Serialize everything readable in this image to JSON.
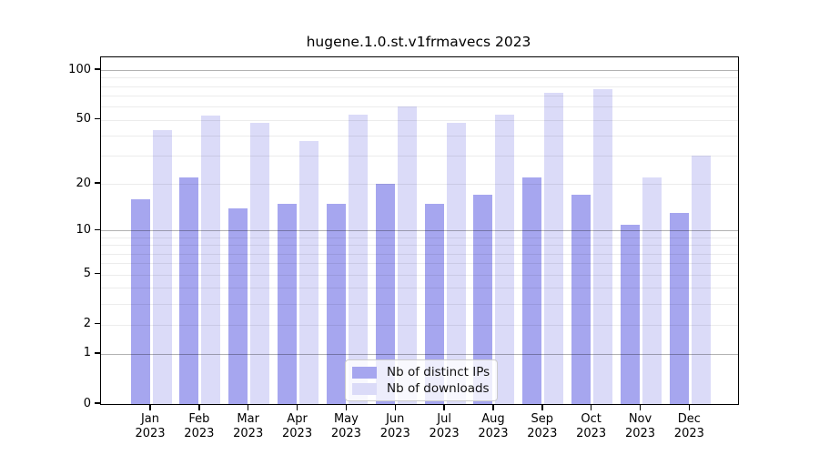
{
  "chart_data": {
    "type": "bar",
    "title": "hugene.1.0.st.v1frmavecs 2023",
    "year": "2023",
    "categories": [
      "Jan",
      "Feb",
      "Mar",
      "Apr",
      "May",
      "Jun",
      "Jul",
      "Aug",
      "Sep",
      "Oct",
      "Nov",
      "Dec"
    ],
    "series": [
      {
        "name": "Nb of distinct IPs",
        "color": "#a6a6ef",
        "values": [
          16,
          22,
          14,
          15,
          15,
          20,
          15,
          17,
          22,
          17,
          11,
          13
        ]
      },
      {
        "name": "Nb of downloads",
        "color": "#dbdbf8",
        "values": [
          43,
          53,
          48,
          37,
          54,
          60,
          48,
          54,
          73,
          77,
          22,
          30
        ]
      }
    ],
    "ylabel": "",
    "xlabel": "",
    "yscale": "log10(1+value)",
    "ylim": [
      0,
      120
    ],
    "yticks": [
      0,
      1,
      2,
      5,
      10,
      20,
      50,
      100
    ],
    "decade_gridlines": [
      1,
      10,
      100
    ],
    "minor_gridlines": [
      2,
      3,
      4,
      5,
      6,
      7,
      8,
      9,
      20,
      30,
      40,
      50,
      60,
      70,
      80,
      90
    ],
    "grid": true,
    "legend_position": "bottom-center",
    "colors": {
      "decade_grid": "#b3b3b3",
      "minor_grid": "#ececec",
      "spine": "#000000",
      "background": "#ffffff"
    }
  }
}
